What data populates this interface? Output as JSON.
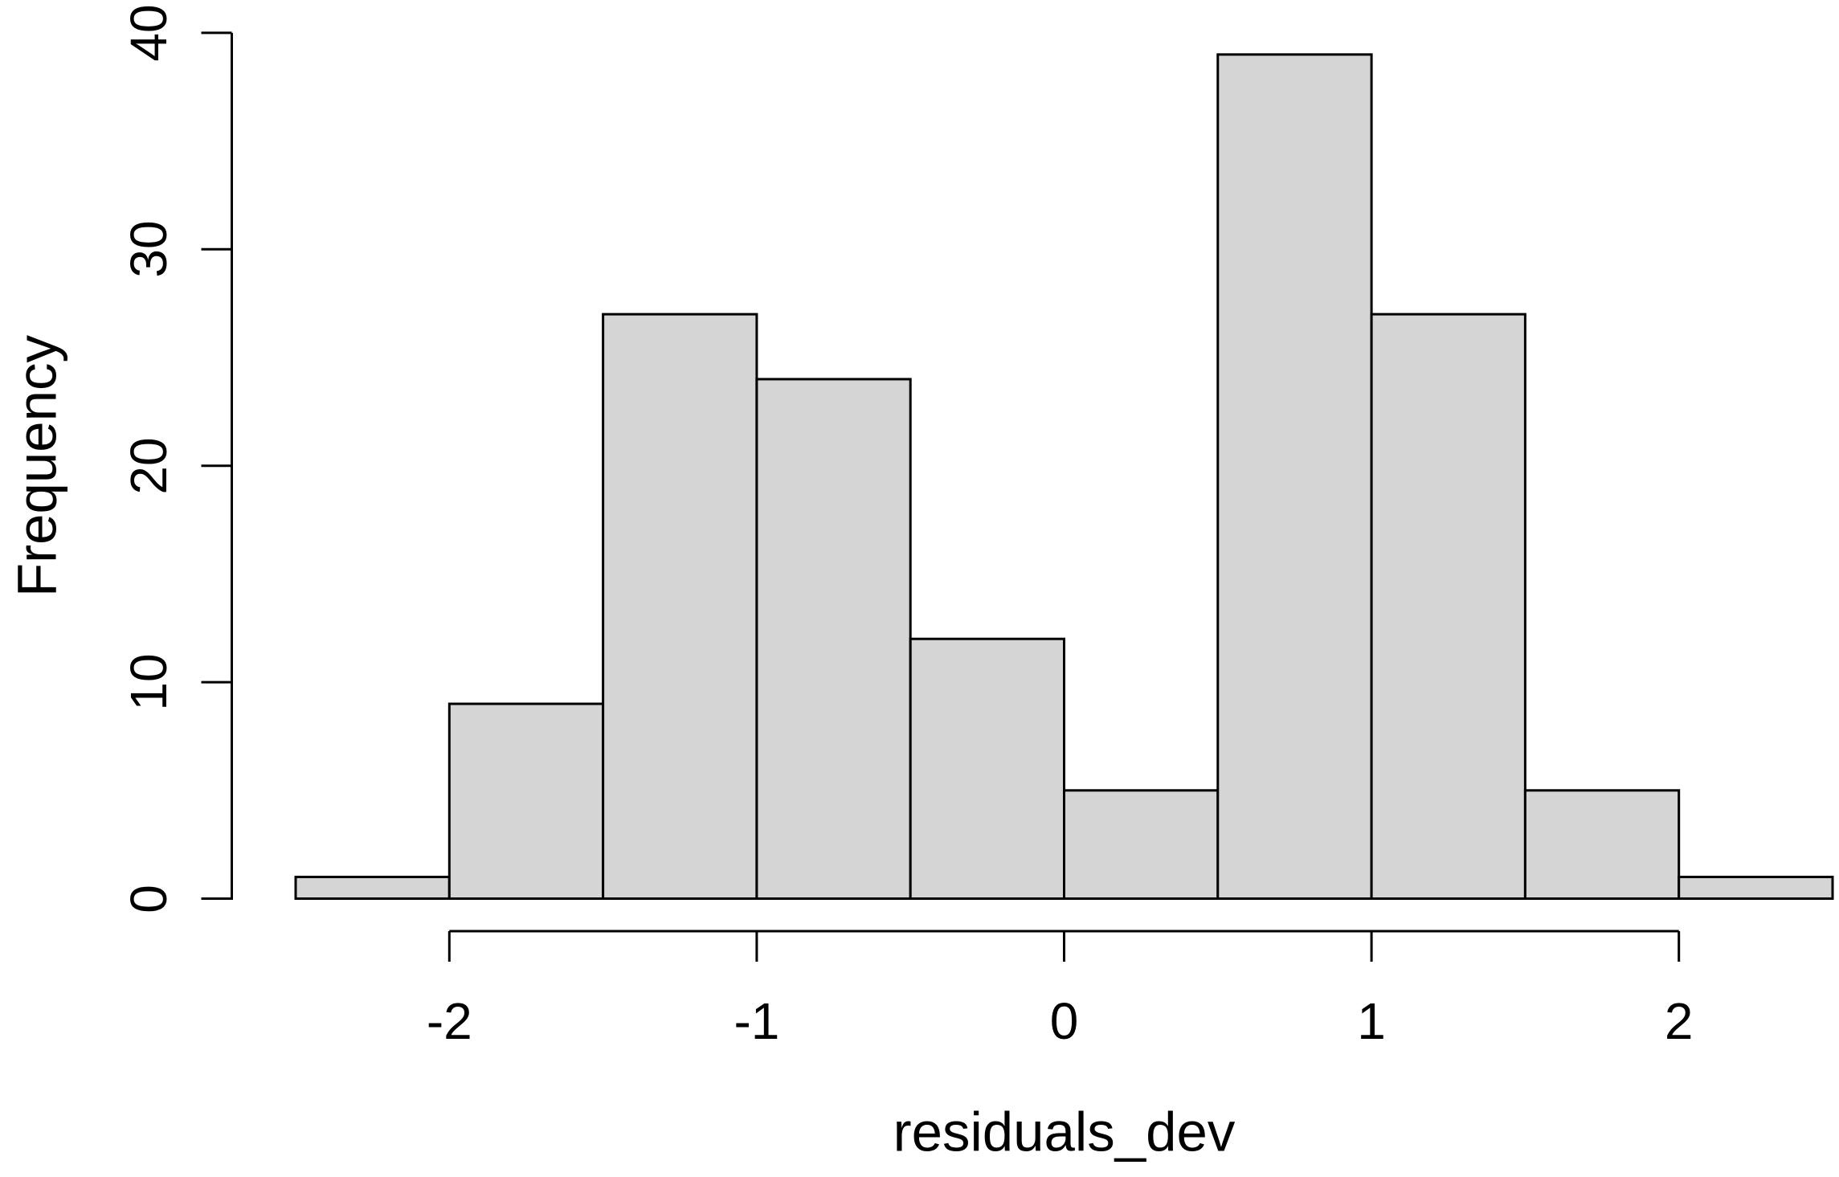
{
  "chart_data": {
    "type": "bar",
    "subtype": "histogram",
    "title": "",
    "xlabel": "residuals_dev",
    "ylabel": "Frequency",
    "bin_edges": [
      -2.5,
      -2.0,
      -1.5,
      -1.0,
      -0.5,
      0.0,
      0.5,
      1.0,
      1.5,
      2.0,
      2.5
    ],
    "counts": [
      1,
      9,
      27,
      24,
      12,
      5,
      39,
      27,
      5,
      1
    ],
    "x_ticks": [
      -2,
      -1,
      0,
      1,
      2
    ],
    "x_tick_labels": [
      "-2",
      "-1",
      "0",
      "1",
      "2"
    ],
    "y_ticks": [
      0,
      10,
      20,
      30,
      40
    ],
    "y_tick_labels": [
      "0",
      "10",
      "20",
      "30",
      "40"
    ],
    "xlim": [
      -2.5,
      2.5
    ],
    "ylim": [
      0,
      40
    ],
    "grid": false,
    "legend_visible": false,
    "colors": {
      "bar_fill": "#d5d5d5",
      "bar_border": "#000000",
      "axis": "#000000",
      "text": "#000000",
      "background": "#ffffff"
    }
  }
}
